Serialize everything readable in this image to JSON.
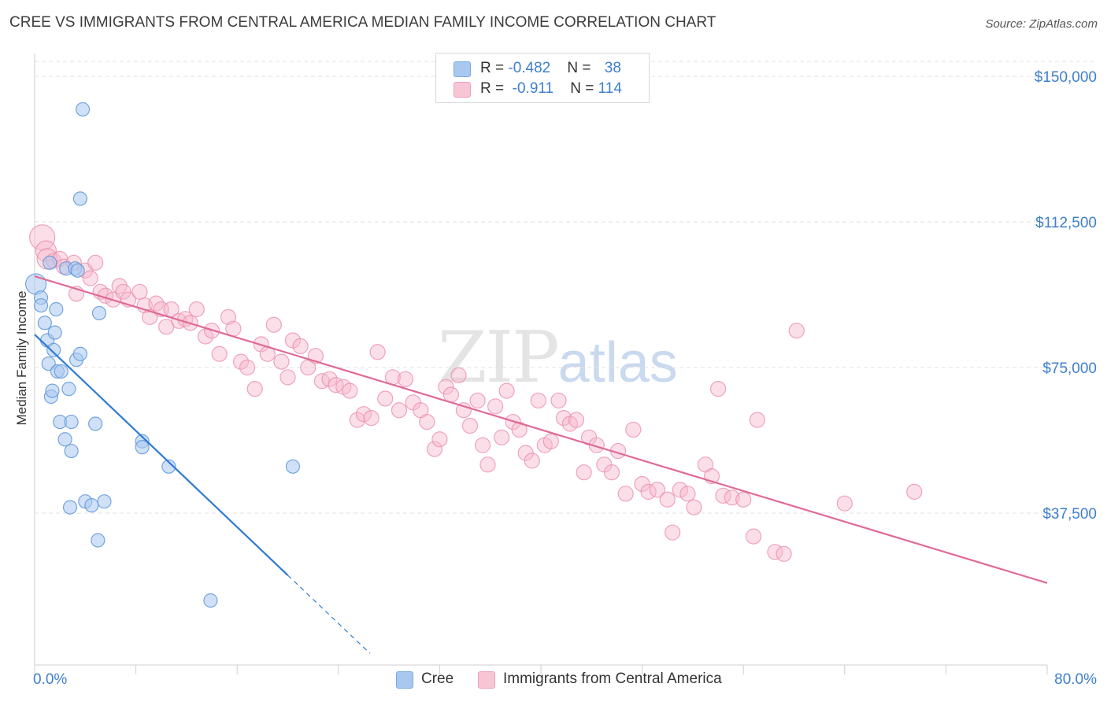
{
  "header": {
    "title": "CREE VS IMMIGRANTS FROM CENTRAL AMERICA MEDIAN FAMILY INCOME CORRELATION CHART",
    "source": "Source: ZipAtlas.com"
  },
  "watermark": {
    "zip": "ZIP",
    "atlas": "atlas"
  },
  "legend": {
    "rows": [
      {
        "r_label": "R = ",
        "r_value": "-0.482",
        "n_label": "N = ",
        "n_value": "38",
        "color": "#a9c8f0"
      },
      {
        "r_label": "R = ",
        "r_value": " -0.911",
        "n_label": "N = ",
        "n_value": "114",
        "color": "#f7b8cb"
      }
    ],
    "bottom": [
      {
        "label": "Cree",
        "color": "#a9c8f0"
      },
      {
        "label": "Immigrants from Central America",
        "color": "#f7b8cb"
      }
    ]
  },
  "chart_data": {
    "type": "scatter",
    "title": "CREE VS IMMIGRANTS FROM CENTRAL AMERICA MEDIAN FAMILY INCOME CORRELATION CHART",
    "xlabel": "",
    "ylabel": "Median Family Income",
    "xlim": [
      0,
      80
    ],
    "ylim": [
      0,
      155000
    ],
    "x_tick_labels": [
      "0.0%",
      "80.0%"
    ],
    "y_ticks": [
      37500,
      75000,
      112500,
      150000
    ],
    "y_tick_labels": [
      "$37,500",
      "$75,000",
      "$112,500",
      "$150,000"
    ],
    "grid": true,
    "colors": {
      "cree": "#a9c8f0",
      "cree_line": "#2f7bd1",
      "ica": "#f7b8cb",
      "ica_line": "#e06a97"
    },
    "series": [
      {
        "name": "Cree",
        "trend": {
          "x": [
            0,
            20.0
          ],
          "y": [
            83500,
            21500
          ],
          "extend_to_x": 26.5
        },
        "points": [
          [
            0.1,
            96500
          ],
          [
            0.5,
            93000
          ],
          [
            0.5,
            91000
          ],
          [
            0.8,
            86500
          ],
          [
            1.0,
            82000
          ],
          [
            1.1,
            76000
          ],
          [
            1.2,
            102000
          ],
          [
            1.3,
            67500
          ],
          [
            1.4,
            69000
          ],
          [
            1.5,
            79500
          ],
          [
            1.6,
            84000
          ],
          [
            1.7,
            90000
          ],
          [
            1.8,
            74000
          ],
          [
            2.0,
            61000
          ],
          [
            2.1,
            74000
          ],
          [
            2.4,
            56500
          ],
          [
            2.5,
            100500
          ],
          [
            2.7,
            69500
          ],
          [
            2.8,
            39000
          ],
          [
            2.9,
            53500
          ],
          [
            3.2,
            100500
          ],
          [
            3.3,
            77000
          ],
          [
            3.6,
            78500
          ],
          [
            3.6,
            118500
          ],
          [
            3.8,
            141500
          ],
          [
            4.0,
            40500
          ],
          [
            4.5,
            39500
          ],
          [
            4.8,
            60500
          ],
          [
            5.0,
            30500
          ],
          [
            5.1,
            89000
          ],
          [
            5.5,
            40500
          ],
          [
            8.5,
            56000
          ],
          [
            8.5,
            54500
          ],
          [
            10.6,
            49500
          ],
          [
            13.9,
            15000
          ],
          [
            20.4,
            49500
          ],
          [
            2.9,
            61000
          ],
          [
            3.4,
            100000
          ]
        ]
      },
      {
        "name": "Immigrants from Central America",
        "trend": {
          "x": [
            0,
            80.0
          ],
          "y": [
            98500,
            19500
          ]
        },
        "points": [
          [
            0.6,
            108500
          ],
          [
            0.9,
            105000
          ],
          [
            1.0,
            103000
          ],
          [
            1.5,
            102500
          ],
          [
            2.0,
            103000
          ],
          [
            2.3,
            101000
          ],
          [
            3.1,
            102000
          ],
          [
            3.3,
            94000
          ],
          [
            4.0,
            100000
          ],
          [
            4.4,
            98000
          ],
          [
            4.8,
            102000
          ],
          [
            5.2,
            94500
          ],
          [
            5.6,
            93500
          ],
          [
            6.2,
            92500
          ],
          [
            6.7,
            96000
          ],
          [
            7.0,
            94500
          ],
          [
            7.4,
            92500
          ],
          [
            8.3,
            94500
          ],
          [
            8.7,
            91000
          ],
          [
            9.1,
            88000
          ],
          [
            9.6,
            91500
          ],
          [
            10.0,
            90000
          ],
          [
            10.4,
            85500
          ],
          [
            10.8,
            90000
          ],
          [
            11.4,
            87000
          ],
          [
            11.9,
            87500
          ],
          [
            12.3,
            86500
          ],
          [
            12.8,
            90000
          ],
          [
            13.5,
            83000
          ],
          [
            14.0,
            84500
          ],
          [
            14.6,
            78500
          ],
          [
            15.3,
            88000
          ],
          [
            15.7,
            85000
          ],
          [
            16.3,
            76500
          ],
          [
            16.8,
            75000
          ],
          [
            17.4,
            69500
          ],
          [
            17.9,
            81000
          ],
          [
            18.4,
            78500
          ],
          [
            18.9,
            86000
          ],
          [
            19.5,
            76500
          ],
          [
            20.0,
            72500
          ],
          [
            20.4,
            82000
          ],
          [
            21.0,
            80500
          ],
          [
            21.6,
            75000
          ],
          [
            22.2,
            78000
          ],
          [
            22.7,
            71500
          ],
          [
            23.3,
            72000
          ],
          [
            23.8,
            70500
          ],
          [
            24.4,
            70000
          ],
          [
            24.9,
            69000
          ],
          [
            25.5,
            61500
          ],
          [
            26.0,
            63000
          ],
          [
            26.6,
            62000
          ],
          [
            27.1,
            79000
          ],
          [
            27.7,
            67000
          ],
          [
            28.3,
            72500
          ],
          [
            28.8,
            64000
          ],
          [
            29.3,
            72000
          ],
          [
            29.9,
            66000
          ],
          [
            30.5,
            64000
          ],
          [
            31.0,
            61000
          ],
          [
            31.6,
            54000
          ],
          [
            32.0,
            56500
          ],
          [
            32.5,
            70000
          ],
          [
            32.9,
            68000
          ],
          [
            33.5,
            73000
          ],
          [
            33.9,
            64000
          ],
          [
            34.4,
            60000
          ],
          [
            35.0,
            66500
          ],
          [
            35.4,
            55000
          ],
          [
            35.8,
            50000
          ],
          [
            36.4,
            65000
          ],
          [
            36.9,
            57000
          ],
          [
            37.3,
            69000
          ],
          [
            37.8,
            61000
          ],
          [
            38.3,
            59000
          ],
          [
            38.8,
            53000
          ],
          [
            39.3,
            51000
          ],
          [
            39.8,
            66500
          ],
          [
            40.3,
            55000
          ],
          [
            40.8,
            56000
          ],
          [
            41.4,
            66500
          ],
          [
            41.8,
            62000
          ],
          [
            42.3,
            60500
          ],
          [
            42.8,
            61500
          ],
          [
            43.4,
            48000
          ],
          [
            43.8,
            57000
          ],
          [
            44.4,
            55000
          ],
          [
            45.0,
            50000
          ],
          [
            45.6,
            48000
          ],
          [
            46.1,
            53500
          ],
          [
            46.7,
            42500
          ],
          [
            47.3,
            59000
          ],
          [
            48.0,
            45000
          ],
          [
            48.5,
            43000
          ],
          [
            49.2,
            43500
          ],
          [
            50.0,
            41000
          ],
          [
            50.4,
            32500
          ],
          [
            51.0,
            43500
          ],
          [
            51.6,
            42500
          ],
          [
            52.1,
            39000
          ],
          [
            53.0,
            50000
          ],
          [
            53.5,
            47000
          ],
          [
            54.4,
            42000
          ],
          [
            55.1,
            41500
          ],
          [
            56.0,
            41000
          ],
          [
            56.8,
            31500
          ],
          [
            57.1,
            61500
          ],
          [
            58.5,
            27500
          ],
          [
            59.2,
            27000
          ],
          [
            60.2,
            84500
          ],
          [
            64.0,
            40000
          ],
          [
            69.5,
            43000
          ],
          [
            54.0,
            69500
          ]
        ]
      }
    ]
  }
}
